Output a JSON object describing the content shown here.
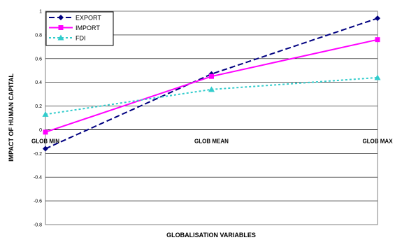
{
  "chart_data": {
    "type": "line",
    "categories": [
      "GLOB MIN",
      "GLOB MEAN",
      "GLOB MAX"
    ],
    "xlabel": "GLOBALISATION VARIABLES",
    "ylabel": "IMPACT OF HUMAN CAPITAL",
    "ylim": [
      -0.8,
      1.0
    ],
    "yticks": [
      "1",
      "0.8",
      "0.6",
      "0.4",
      "0.2",
      "0",
      "-0.2",
      "-0.4",
      "-0.6",
      "-0.8"
    ],
    "ytick_values": [
      1,
      0.8,
      0.6,
      0.4,
      0.2,
      0,
      -0.2,
      -0.4,
      -0.6,
      -0.8
    ],
    "grid": true,
    "legend_position": "top-left",
    "series": [
      {
        "name": "EXPORT",
        "values": [
          -0.16,
          0.47,
          0.94
        ],
        "color": "#000080",
        "style": "dashed",
        "marker": "diamond"
      },
      {
        "name": "IMPORT",
        "values": [
          -0.02,
          0.45,
          0.76
        ],
        "color": "#ff00ff",
        "style": "solid",
        "marker": "square"
      },
      {
        "name": "FDI",
        "values": [
          0.13,
          0.34,
          0.44
        ],
        "color": "#33cccc",
        "style": "dotted",
        "marker": "triangle"
      }
    ]
  }
}
